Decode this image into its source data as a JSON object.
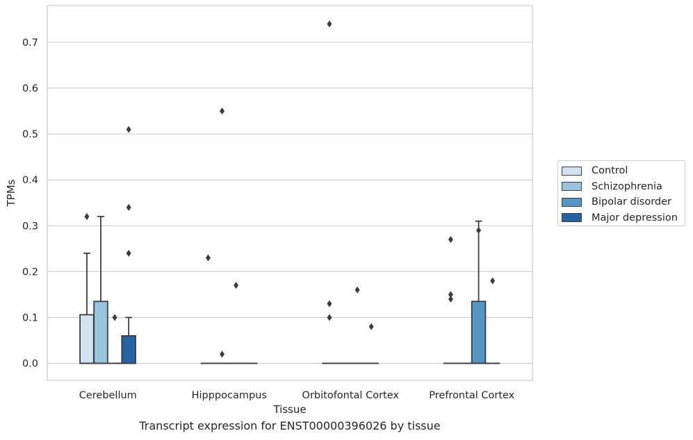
{
  "chart_data": {
    "type": "box",
    "title": "",
    "caption": "Transcript expression for ENST00000396026 by tissue",
    "xlabel": "Tissue",
    "ylabel": "TPMs",
    "ylim": [
      -0.037,
      0.78
    ],
    "yticks": [
      "0.0",
      "0.1",
      "0.2",
      "0.3",
      "0.4",
      "0.5",
      "0.6",
      "0.7"
    ],
    "grid": true,
    "legend_position": "right",
    "categories": [
      "Cerebellum",
      "Hipppocampus",
      "Orbitofontal Cortex",
      "Prefrontal Cortex"
    ],
    "series": [
      {
        "name": "Control",
        "color": "#d1e3f1",
        "boxes": [
          {
            "q1": 0,
            "median": 0,
            "q3": 0.106,
            "whisker_low": 0,
            "whisker_high": 0.24,
            "outliers": [
              0.32
            ]
          },
          {
            "q1": 0,
            "median": 0,
            "q3": 0,
            "whisker_low": 0,
            "whisker_high": 0,
            "outliers": [
              0.23
            ]
          },
          {
            "q1": 0,
            "median": 0,
            "q3": 0,
            "whisker_low": 0,
            "whisker_high": 0,
            "outliers": [
              0.74,
              0.13,
              0.1
            ]
          },
          {
            "q1": 0,
            "median": 0,
            "q3": 0,
            "whisker_low": 0,
            "whisker_high": 0,
            "outliers": [
              0.27,
              0.15,
              0.14
            ]
          }
        ]
      },
      {
        "name": "Schizophrenia",
        "color": "#9ac4dd",
        "boxes": [
          {
            "q1": 0,
            "median": 0,
            "q3": 0.135,
            "whisker_low": 0,
            "whisker_high": 0.32,
            "outliers": []
          },
          {
            "q1": 0,
            "median": 0,
            "q3": 0,
            "whisker_low": 0,
            "whisker_high": 0,
            "outliers": [
              0.55,
              0.02
            ]
          },
          {
            "q1": 0,
            "median": 0,
            "q3": 0,
            "whisker_low": 0,
            "whisker_high": 0,
            "outliers": []
          },
          {
            "q1": 0,
            "median": 0,
            "q3": 0,
            "whisker_low": 0,
            "whisker_high": 0,
            "outliers": []
          }
        ]
      },
      {
        "name": "Bipolar disorder",
        "color": "#5497c7",
        "boxes": [
          {
            "q1": 0,
            "median": 0,
            "q3": 0,
            "whisker_low": 0,
            "whisker_high": 0,
            "outliers": [
              0.1
            ]
          },
          {
            "q1": 0,
            "median": 0,
            "q3": 0,
            "whisker_low": 0,
            "whisker_high": 0,
            "outliers": [
              0.17
            ]
          },
          {
            "q1": 0,
            "median": 0,
            "q3": 0,
            "whisker_low": 0,
            "whisker_high": 0,
            "outliers": [
              0.16
            ]
          },
          {
            "q1": 0,
            "median": 0,
            "q3": 0.135,
            "whisker_low": 0,
            "whisker_high": 0.31,
            "outliers": [
              0.29
            ]
          }
        ]
      },
      {
        "name": "Major depression",
        "color": "#2464a5",
        "boxes": [
          {
            "q1": 0,
            "median": 0,
            "q3": 0.06,
            "whisker_low": 0,
            "whisker_high": 0.1,
            "outliers": [
              0.51,
              0.34,
              0.24
            ]
          },
          {
            "q1": 0,
            "median": 0,
            "q3": 0,
            "whisker_low": 0,
            "whisker_high": 0,
            "outliers": []
          },
          {
            "q1": 0,
            "median": 0,
            "q3": 0,
            "whisker_low": 0,
            "whisker_high": 0,
            "outliers": [
              0.08
            ]
          },
          {
            "q1": 0,
            "median": 0,
            "q3": 0,
            "whisker_low": 0,
            "whisker_high": 0,
            "outliers": [
              0.18
            ]
          }
        ]
      }
    ]
  }
}
